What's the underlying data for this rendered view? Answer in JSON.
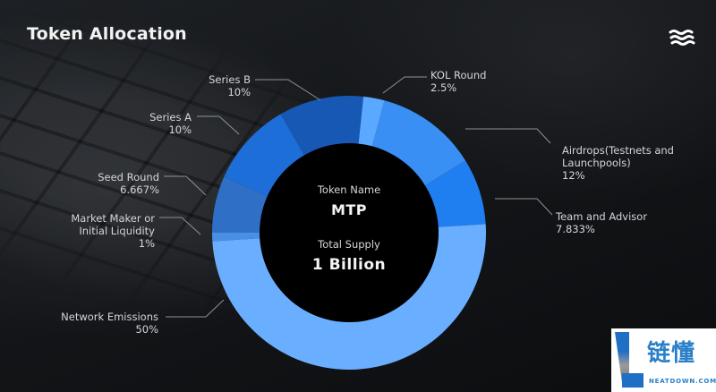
{
  "header": {
    "title": "Token Allocation",
    "logo_icon": "wave-lines-icon"
  },
  "center": {
    "token_name_label": "Token Name",
    "token_name_value": "MTP",
    "total_supply_label": "Total Supply",
    "total_supply_value": "1 Billion"
  },
  "labels": {
    "series_b": {
      "name": "Series B",
      "pct": "10%"
    },
    "kol_round": {
      "name": "KOL Round",
      "pct": "2.5%"
    },
    "series_a": {
      "name": "Series A",
      "pct": "10%"
    },
    "airdrops": {
      "name1": "Airdrops(Testnets and",
      "name2": "Launchpools)",
      "pct": "12%"
    },
    "seed_round": {
      "name": "Seed Round",
      "pct": "6.667%"
    },
    "team_advisor": {
      "name": "Team and Advisor",
      "pct": "7.833%"
    },
    "market_maker": {
      "name1": "Market Maker or",
      "name2": "Initial Liquidity",
      "pct": "1%"
    },
    "network_emissions": {
      "name": "Network Emissions",
      "pct": "50%"
    }
  },
  "watermark": {
    "chinese": "链懂",
    "domain": "NEATDOWN.COM"
  },
  "colors": {
    "kol_round": "#5aa8ff",
    "airdrops": "#3a8ff5",
    "team_advisor": "#1f7ff0",
    "network_emissions": "#6aaeff",
    "market_maker": "#4a8fe6",
    "seed_round": "#2f70c6",
    "series_a": "#1d6ed8",
    "series_b": "#1758b5"
  },
  "chart_data": {
    "type": "pie",
    "subtype": "donut",
    "title": "Token Allocation",
    "center_text": [
      "Token Name",
      "MTP",
      "Total Supply",
      "1 Billion"
    ],
    "categories": [
      "KOL Round",
      "Airdrops(Testnets and Launchpools)",
      "Team and Advisor",
      "Network Emissions",
      "Market Maker or Initial Liquidity",
      "Seed Round",
      "Series A",
      "Series B"
    ],
    "values": [
      2.5,
      12,
      7.833,
      50,
      1,
      6.667,
      10,
      10
    ],
    "unit": "%",
    "legend": "leader-line labels around donut",
    "start_angle_deg": 6,
    "direction": "clockwise"
  }
}
